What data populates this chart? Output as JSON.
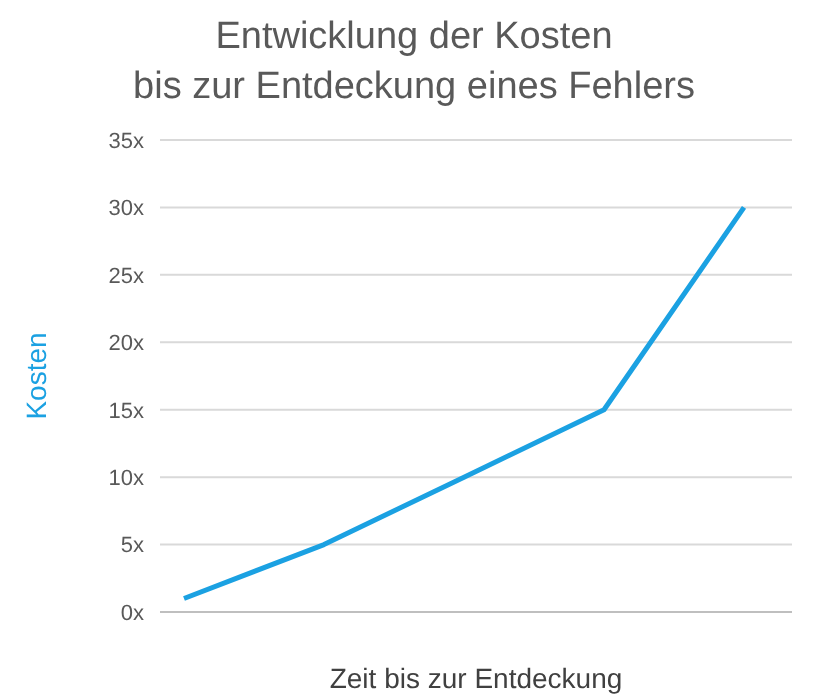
{
  "chart_data": {
    "type": "line",
    "title": "Entwicklung der Kosten\nbis zur Entdeckung eines Fehlers",
    "xlabel": "Zeit bis zur Entdeckung",
    "ylabel": "Kosten",
    "categories": [
      null,
      null,
      null,
      null,
      null
    ],
    "series": [
      {
        "color": "#1ba1e2",
        "values": [
          1,
          5,
          10,
          15,
          30
        ]
      }
    ],
    "ylim": [
      0,
      35
    ],
    "yticks": [
      {
        "value": 0,
        "label": "0x"
      },
      {
        "value": 5,
        "label": "5x"
      },
      {
        "value": 10,
        "label": "10x"
      },
      {
        "value": 15,
        "label": "15x"
      },
      {
        "value": 20,
        "label": "20x"
      },
      {
        "value": 25,
        "label": "25x"
      },
      {
        "value": 30,
        "label": "30x"
      },
      {
        "value": 35,
        "label": "35x"
      }
    ],
    "grid": "y",
    "legend": false,
    "marker": "none",
    "line_style": "solid"
  }
}
